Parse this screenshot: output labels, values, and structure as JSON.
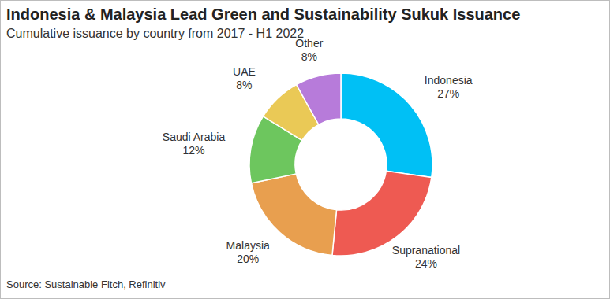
{
  "chart_data": {
    "type": "pie",
    "title": "Indonesia & Malaysia Lead Green and Sustainability Sukuk Issuance",
    "subtitle": "Cumulative issuance by country from 2017 - H1 2022",
    "source": "Source: Sustainable Fitch, Refinitiv",
    "categories": [
      "Indonesia",
      "Supranational",
      "Malaysia",
      "Saudi Arabia",
      "UAE",
      "Other"
    ],
    "values": [
      27,
      24,
      20,
      12,
      8,
      8
    ],
    "value_labels": [
      "27%",
      "24%",
      "20%",
      "12%",
      "8%",
      "8%"
    ],
    "colors": [
      "#00c0f5",
      "#ee5a52",
      "#e89f4f",
      "#6dc65e",
      "#eac956",
      "#b77bda"
    ],
    "data_labels": true
  }
}
